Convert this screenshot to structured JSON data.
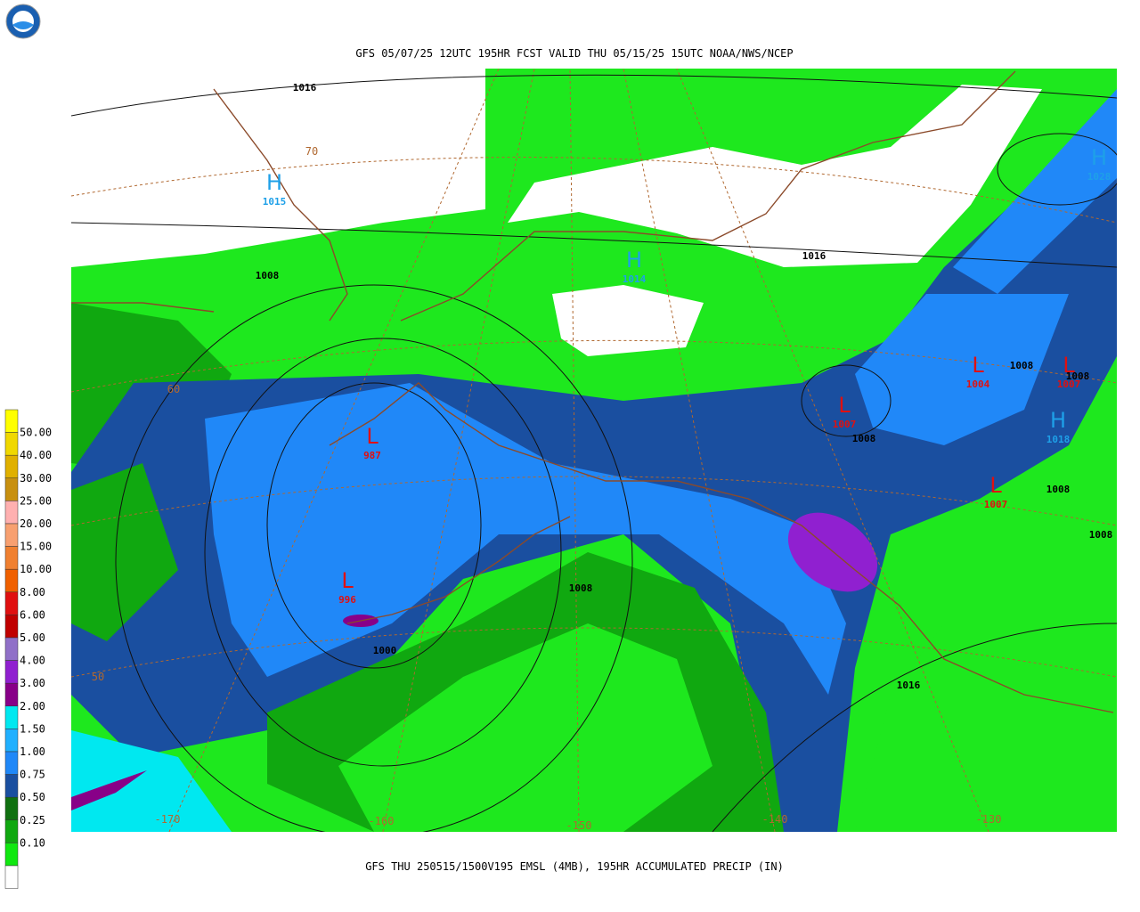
{
  "header": {
    "title": "GFS 05/07/25 12UTC 195HR FCST VALID THU 05/15/25 15UTC NOAA/NWS/NCEP"
  },
  "footer": {
    "caption": "GFS THU 250515/1500V195 EMSL (4MB), 195HR ACCUMULATED PRECIP (IN)"
  },
  "legend": {
    "colors": [
      "#ffff00",
      "#f0d800",
      "#e0b000",
      "#c89010",
      "#ffb0b0",
      "#f8a070",
      "#f08030",
      "#f06000",
      "#e01010",
      "#c00000",
      "#9070c8",
      "#9020d0",
      "#880088",
      "#00e8f0",
      "#20b0ff",
      "#2088f8",
      "#1a4fa0",
      "#107010",
      "#10a810",
      "#10e810",
      "#ffffff"
    ],
    "labels": [
      "50.00",
      "40.00",
      "30.00",
      "25.00",
      "20.00",
      "15.00",
      "10.00",
      "8.00",
      "6.00",
      "5.00",
      "4.00",
      "3.00",
      "2.00",
      "1.50",
      "1.00",
      "0.75",
      "0.50",
      "0.25",
      "0.10"
    ]
  },
  "map": {
    "pressure_centers": [
      {
        "symbol": "H",
        "value": "1015",
        "color": "#1ea0e8"
      },
      {
        "symbol": "H",
        "value": "1014",
        "color": "#1ea0e8"
      },
      {
        "symbol": "H",
        "value": "1028",
        "color": "#1ea0e8"
      },
      {
        "symbol": "H",
        "value": "1018",
        "color": "#1ea0e8"
      },
      {
        "symbol": "L",
        "value": "987",
        "color": "#e01010"
      },
      {
        "symbol": "L",
        "value": "996",
        "color": "#e01010"
      },
      {
        "symbol": "L",
        "value": "1007",
        "color": "#e01010"
      },
      {
        "symbol": "L",
        "value": "1004",
        "color": "#e01010"
      },
      {
        "symbol": "L",
        "value": "1007",
        "color": "#e01010"
      },
      {
        "symbol": "L",
        "value": "1007",
        "color": "#e01010"
      }
    ],
    "isobar_labels": [
      "1016",
      "1008",
      "1016",
      "1008",
      "1008",
      "1008",
      "1008",
      "1008",
      "1008",
      "1000",
      "1016"
    ],
    "grid_labels": [
      "70",
      "60",
      "50",
      "-170",
      "-160",
      "-150",
      "-140",
      "-130"
    ]
  }
}
